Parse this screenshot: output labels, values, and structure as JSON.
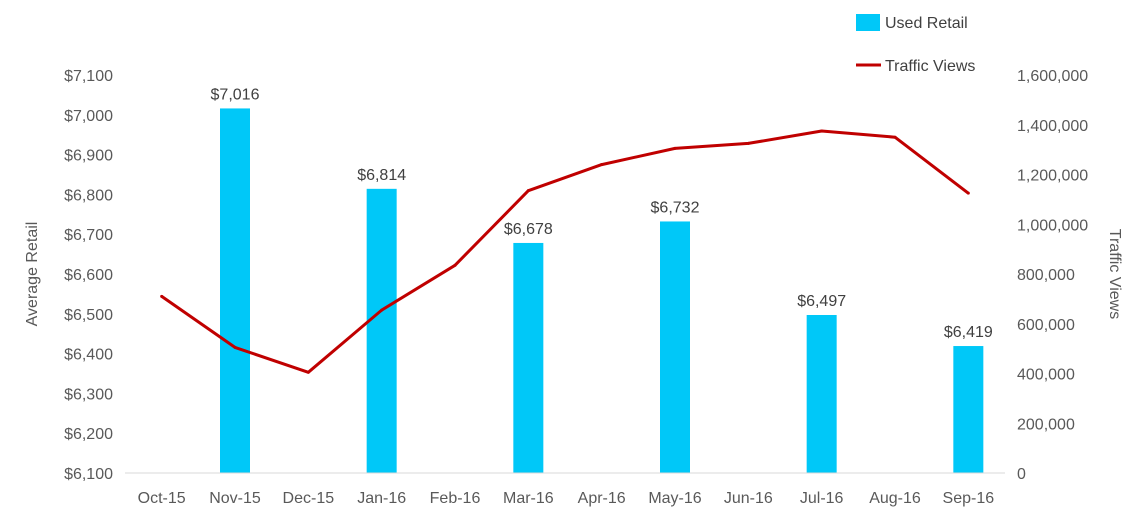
{
  "chart_data": {
    "type": "bar",
    "categories": [
      "Oct-15",
      "Nov-15",
      "Dec-15",
      "Jan-16",
      "Feb-16",
      "Mar-16",
      "Apr-16",
      "May-16",
      "Jun-16",
      "Jul-16",
      "Aug-16",
      "Sep-16"
    ],
    "series": [
      {
        "name": "Used Retail",
        "type": "bar",
        "axis": "left",
        "color": "#00C8F8",
        "values": [
          null,
          7016,
          null,
          6814,
          null,
          6678,
          null,
          6732,
          null,
          6497,
          null,
          6419
        ],
        "data_labels": [
          null,
          "$7,016",
          null,
          "$6,814",
          null,
          "$6,678",
          null,
          "$6,732",
          null,
          "$6,497",
          null,
          "$6,419"
        ]
      },
      {
        "name": "Traffic Views",
        "type": "line",
        "axis": "right",
        "color": "#C00000",
        "values": [
          710000,
          505000,
          405000,
          655000,
          835000,
          1135000,
          1240000,
          1305000,
          1325000,
          1375000,
          1350000,
          1125000
        ]
      }
    ],
    "y_left": {
      "label": "Average Retail",
      "lim": [
        6100,
        7100
      ],
      "ticks": [
        6100,
        6200,
        6300,
        6400,
        6500,
        6600,
        6700,
        6800,
        6900,
        7000,
        7100
      ],
      "tick_labels": [
        "$6,100",
        "$6,200",
        "$6,300",
        "$6,400",
        "$6,500",
        "$6,600",
        "$6,700",
        "$6,800",
        "$6,900",
        "$7,000",
        "$7,100"
      ]
    },
    "y_right": {
      "label": "Traffic Views",
      "lim": [
        0,
        1600000
      ],
      "ticks": [
        0,
        200000,
        400000,
        600000,
        800000,
        1000000,
        1200000,
        1400000,
        1600000
      ],
      "tick_labels": [
        "0",
        "200,000",
        "400,000",
        "600,000",
        "800,000",
        "1,000,000",
        "1,200,000",
        "1,400,000",
        "1,600,000"
      ]
    },
    "xlabel": "",
    "grid": false,
    "legend_position": "top-right"
  }
}
